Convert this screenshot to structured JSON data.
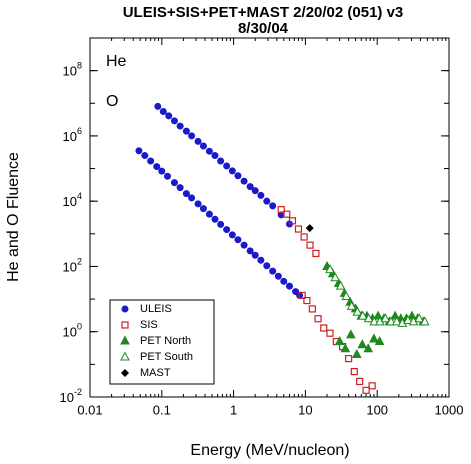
{
  "chart_data": {
    "type": "scatter",
    "title": "ULEIS+SIS+PET+MAST 2/20/02 (051) v3",
    "subtitle": "8/30/04",
    "x_label": "Energy (MeV/nucleon)",
    "y_label": "He and O Fluence",
    "annotations": [
      "He",
      "O"
    ],
    "log_x": true,
    "log_y": true,
    "xlim": [
      0.01,
      1000
    ],
    "ylim": [
      0.01,
      1000000000
    ],
    "xticks": [
      0.01,
      0.1,
      1,
      10,
      100,
      1000
    ],
    "yticks": [
      {
        "value": 0.01,
        "label": "10",
        "exponent": "-2"
      },
      {
        "value": 1,
        "label": "10",
        "exponent": "0"
      },
      {
        "value": 100,
        "label": "10",
        "exponent": "2"
      },
      {
        "value": 10000,
        "label": "10",
        "exponent": "4"
      },
      {
        "value": 1000000,
        "label": "10",
        "exponent": "6"
      },
      {
        "value": 100000000,
        "label": "10",
        "exponent": "8"
      }
    ],
    "legend": "lower left",
    "series": [
      {
        "name": "ULEIS",
        "color": "#1a1acc",
        "marker": "circle",
        "x": [
          0.088,
          0.105,
          0.125,
          0.15,
          0.18,
          0.22,
          0.26,
          0.32,
          0.38,
          0.46,
          0.55,
          0.66,
          0.8,
          0.96,
          1.15,
          1.4,
          1.7,
          2.0,
          2.4,
          2.9,
          3.5,
          4.6,
          6.0,
          0.048,
          0.058,
          0.07,
          0.085,
          0.1,
          0.12,
          0.15,
          0.18,
          0.22,
          0.26,
          0.32,
          0.38,
          0.46,
          0.55,
          0.66,
          0.8,
          0.96,
          1.15,
          1.4,
          1.7,
          2.0,
          2.4,
          2.9,
          3.5,
          4.2,
          5.0,
          6.0,
          7.3,
          8.3
        ],
        "values": [
          8000000,
          5600000,
          4100000,
          2900000,
          2000000,
          1400000,
          1000000,
          680000,
          490000,
          340000,
          250000,
          170000,
          120000,
          85000,
          60000,
          41000,
          28000,
          21000,
          15000,
          10000,
          7200,
          3800,
          2000,
          350000,
          250000,
          170000,
          115000,
          83000,
          58000,
          37000,
          26000,
          17000,
          12600,
          8300,
          5900,
          4000,
          2800,
          1950,
          1350,
          930,
          660,
          450,
          300,
          220,
          155,
          105,
          72,
          50,
          35,
          25,
          17,
          13
        ]
      },
      {
        "name": "SIS",
        "color": "#cc2020",
        "marker": "square",
        "x": [
          4.6,
          5.5,
          6.6,
          8,
          9.6,
          11.6,
          14,
          9,
          10.5,
          12.5,
          15,
          18,
          22,
          27,
          33,
          40,
          48,
          57,
          70,
          85
        ],
        "values": [
          5500,
          4000,
          2500,
          1400,
          800,
          450,
          250,
          13,
          9,
          5,
          2.5,
          1.3,
          0.9,
          0.5,
          0.35,
          0.15,
          0.06,
          0.03,
          0.016,
          0.022
        ]
      },
      {
        "name": "PET North",
        "color": "#1e8a1e",
        "marker": "triangle",
        "x": [
          20,
          24,
          29,
          35,
          42,
          50,
          60,
          72,
          86,
          103,
          124,
          148,
          178,
          213,
          255,
          305,
          365,
          437,
          30,
          36,
          43,
          52,
          62,
          75,
          90,
          108
        ],
        "values": [
          100,
          60,
          30,
          15,
          8,
          5,
          3,
          3,
          2.5,
          3,
          2.5,
          2,
          3,
          2.5,
          2.5,
          3,
          2.5,
          2,
          0.5,
          0.3,
          0.8,
          0.2,
          0.4,
          0.3,
          0.6,
          0.5
        ]
      },
      {
        "name": "PET South",
        "color": "#1e8a1e",
        "marker": "triangle-open",
        "x": [
          22,
          26,
          31,
          37,
          44,
          53,
          63,
          76,
          91,
          109,
          130,
          156,
          187,
          224,
          268,
          321,
          384,
          460
        ],
        "values": [
          80,
          45,
          25,
          12,
          6,
          4,
          3,
          2.5,
          2,
          2,
          2.5,
          2,
          2,
          1.8,
          2.2,
          2,
          2.5,
          2
        ]
      },
      {
        "name": "MAST",
        "color": "#000000",
        "marker": "diamond",
        "x": [
          11.5
        ],
        "values": [
          1500
        ]
      }
    ]
  }
}
